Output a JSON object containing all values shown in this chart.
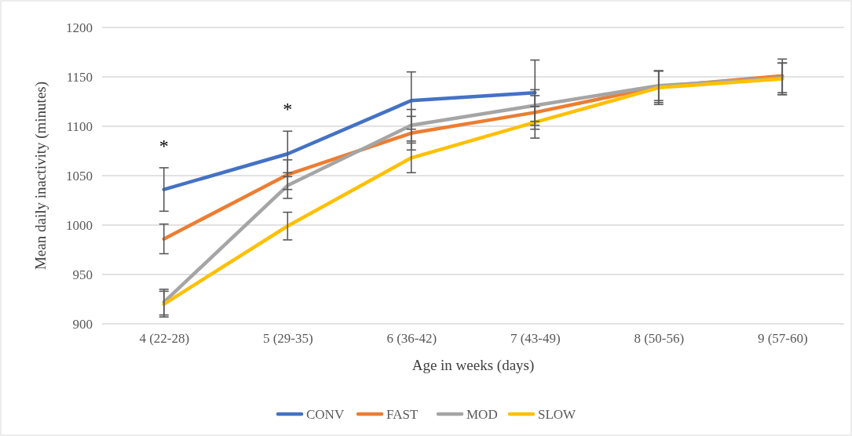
{
  "chart_data": {
    "type": "line",
    "xlabel": "Age in weeks (days)",
    "ylabel": "Mean daily inactivity (minutes)",
    "categories": [
      "4 (22-28)",
      "5 (29-35)",
      "6 (36-42)",
      "7 (43-49)",
      "8 (50-56)",
      "9 (57-60)"
    ],
    "series": [
      {
        "name": "CONV",
        "color": "#4472c4",
        "values": [
          1036,
          1072,
          1126,
          1134,
          null,
          null
        ],
        "errors": [
          22,
          23,
          29,
          33,
          null,
          null
        ]
      },
      {
        "name": "FAST",
        "color": "#ed7d31",
        "values": [
          986,
          1051,
          1093,
          1114,
          1140,
          1151
        ],
        "errors": [
          15,
          15,
          17,
          17,
          16,
          [
            1132,
            1168
          ]
        ]
      },
      {
        "name": "MOD",
        "color": "#a5a5a5",
        "values": [
          922,
          1040,
          1101,
          1121,
          1141,
          1149
        ],
        "errors": [
          13,
          13,
          16,
          16,
          15,
          15
        ]
      },
      {
        "name": "SLOW",
        "color": "#ffc000",
        "values": [
          920,
          999,
          1068,
          1104,
          1139,
          1148
        ],
        "errors": [
          13,
          14,
          15,
          16,
          17,
          16
        ]
      }
    ],
    "ylim": [
      900,
      1200
    ],
    "yticks": [
      900,
      950,
      1000,
      1050,
      1100,
      1150,
      1200
    ],
    "grid": "y",
    "legend": "bottom",
    "marker": "none",
    "line_style": "solid",
    "annotations": [
      "*",
      "*"
    ]
  }
}
